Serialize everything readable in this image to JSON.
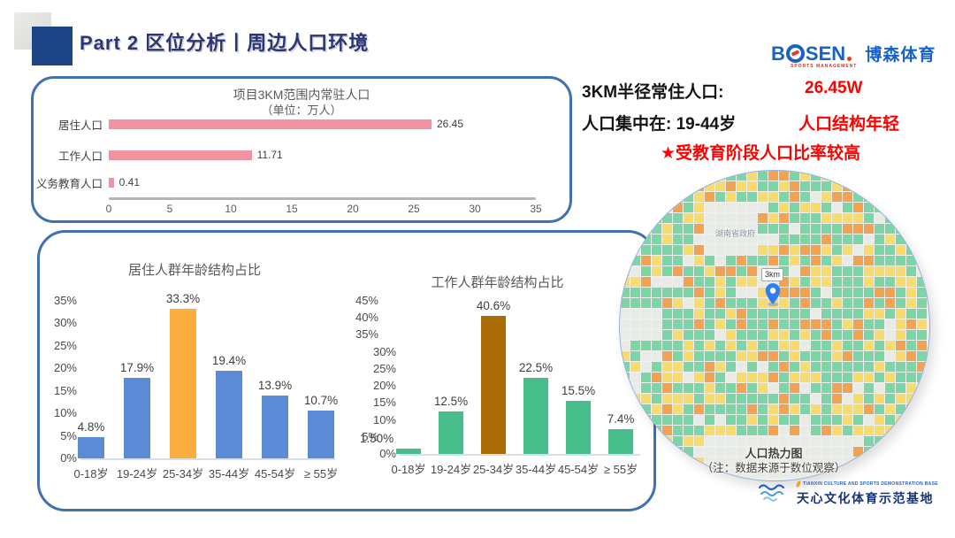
{
  "header": {
    "title": "Part 2 区位分析丨周边人口环境"
  },
  "bosen_logo": {
    "b": "B",
    "sen": "SEN",
    "subtitle": "SPORTS MANAGEMENT",
    "cn": "博森体育",
    "brand_blue": "#1761C8",
    "brand_red": "#E23A2E"
  },
  "summary": {
    "line1_label": "3KM半径常住人口:",
    "line1_value": "26.45W",
    "line2_label": "人口集中在:  19-44岁",
    "line2_value": "人口结构年轻",
    "line3": "★受教育阶段人口比率较高",
    "accent_color": "#FE0000"
  },
  "chart_data": [
    {
      "id": "resident-population",
      "type": "bar",
      "orientation": "horizontal",
      "title": "项目3KM范围内常驻人口",
      "subtitle": "（单位：万人）",
      "categories": [
        "居住人口",
        "工作人口",
        "义务教育人口"
      ],
      "values": [
        26.45,
        11.71,
        0.41
      ],
      "value_labels": [
        "26.45",
        "11.71",
        "0.41"
      ],
      "xlim": [
        0,
        35
      ],
      "xticks": [
        "0",
        "5",
        "10",
        "15",
        "20",
        "25",
        "30",
        "35"
      ],
      "bar_color": "#F392A1",
      "grid": false
    },
    {
      "id": "living-age-structure",
      "type": "bar",
      "title": "居住人群年龄结构占比",
      "categories": [
        "0-18岁",
        "19-24岁",
        "25-34岁",
        "35-44岁",
        "45-54岁",
        "≥ 55岁"
      ],
      "values": [
        4.8,
        17.9,
        33.3,
        19.4,
        13.9,
        10.7
      ],
      "value_labels": [
        "4.8%",
        "17.9%",
        "33.3%",
        "19.4%",
        "13.9%",
        "10.7%"
      ],
      "ylim": [
        0,
        35
      ],
      "yticks": [
        "35%",
        "30%",
        "25%",
        "20%",
        "15%",
        "10%",
        "5%",
        "0%"
      ],
      "bar_color": "#5B8BD5",
      "highlight_index": 2,
      "highlight_color": "#FBAE3F",
      "grid": false
    },
    {
      "id": "working-age-structure",
      "type": "bar",
      "title": "工作人群年龄结构占比",
      "categories": [
        "0-18岁",
        "19-24岁",
        "25-34岁",
        "35-44岁",
        "45-54岁",
        "≥ 55岁"
      ],
      "values": [
        1.5,
        12.5,
        40.6,
        22.5,
        15.5,
        7.4
      ],
      "value_labels": [
        "1.50%",
        "12.5%",
        "40.6%",
        "22.5%",
        "15.5%",
        "7.4%"
      ],
      "ylim": [
        0,
        45
      ],
      "yticks": [
        "45%",
        "40%",
        "35%",
        "30%",
        "25%",
        "20%",
        "15%",
        "10%",
        "5%",
        "0%"
      ],
      "bar_color": "#48BE8D",
      "highlight_index": 2,
      "highlight_color": "#A96B04",
      "grid": false
    }
  ],
  "heatmap": {
    "caption": "人口热力图",
    "note": "（注：数据来源于数位观察）",
    "pin_label": "3km",
    "map_label": "湖南省政府",
    "palette": {
      "green": "#7BD5A7",
      "yellow": "#F7DB6C",
      "orange": "#F1A351",
      "light": "#E9ECE6"
    },
    "pin_color": "#2F7CF6"
  },
  "footer_logo": {
    "en": "TIANXIN CULTURE AND SPORTS DEMONSTRATION BASE",
    "cn": "天心文化体育示范基地"
  }
}
